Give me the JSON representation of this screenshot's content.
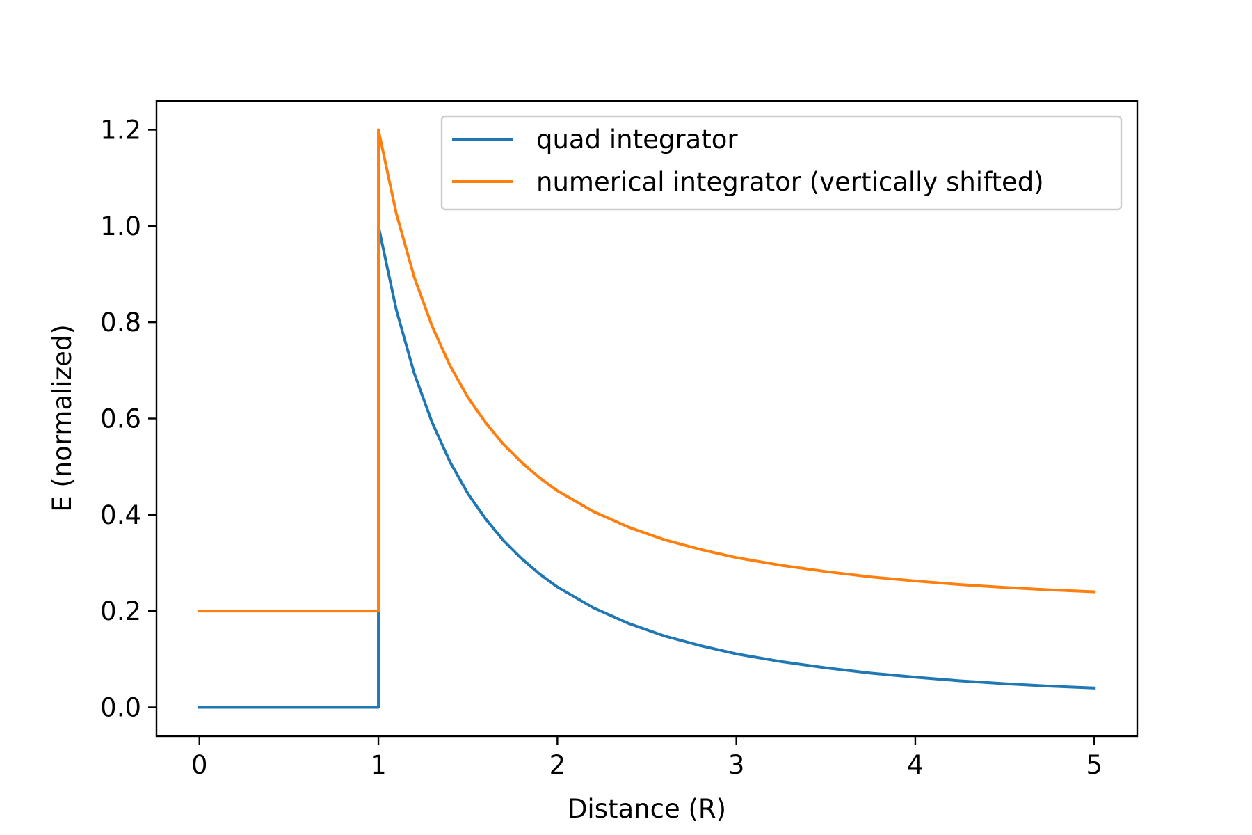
{
  "chart_data": {
    "type": "line",
    "title": "",
    "xlabel": "Distance (R)",
    "ylabel": "E (normalized)",
    "xlim": [
      -0.24,
      5.24
    ],
    "ylim": [
      -0.06,
      1.26
    ],
    "x_ticks": [
      0,
      1,
      2,
      3,
      4,
      5
    ],
    "y_ticks": [
      0.0,
      0.2,
      0.4,
      0.6,
      0.8,
      1.0,
      1.2
    ],
    "x_tick_labels": [
      "0",
      "1",
      "2",
      "3",
      "4",
      "5"
    ],
    "y_tick_labels": [
      "0.0",
      "0.2",
      "0.4",
      "0.6",
      "0.8",
      "1.0",
      "1.2"
    ],
    "grid": false,
    "legend_position": "top-right",
    "series": [
      {
        "name": "quad integrator",
        "color": "#1f77b4",
        "x": [
          0,
          0.5,
          1.0,
          1.0,
          1.1,
          1.2,
          1.3,
          1.4,
          1.5,
          1.6,
          1.7,
          1.8,
          1.9,
          2.0,
          2.2,
          2.4,
          2.6,
          2.8,
          3.0,
          3.25,
          3.5,
          3.75,
          4.0,
          4.25,
          4.5,
          4.75,
          5.0
        ],
        "y": [
          0,
          0,
          0,
          1.0,
          0.826,
          0.694,
          0.592,
          0.51,
          0.444,
          0.391,
          0.346,
          0.309,
          0.277,
          0.25,
          0.207,
          0.174,
          0.148,
          0.128,
          0.111,
          0.095,
          0.082,
          0.071,
          0.0625,
          0.055,
          0.049,
          0.044,
          0.04
        ]
      },
      {
        "name": "numerical integrator (vertically shifted)",
        "color": "#ff7f0e",
        "x": [
          0,
          0.5,
          1.0,
          1.0,
          1.1,
          1.2,
          1.3,
          1.4,
          1.5,
          1.6,
          1.7,
          1.8,
          1.9,
          2.0,
          2.2,
          2.4,
          2.6,
          2.8,
          3.0,
          3.25,
          3.5,
          3.75,
          4.0,
          4.25,
          4.5,
          4.75,
          5.0
        ],
        "y": [
          0.2,
          0.2,
          0.2,
          1.2,
          1.026,
          0.894,
          0.792,
          0.71,
          0.644,
          0.591,
          0.546,
          0.509,
          0.477,
          0.45,
          0.407,
          0.374,
          0.348,
          0.328,
          0.311,
          0.295,
          0.282,
          0.271,
          0.2625,
          0.255,
          0.249,
          0.244,
          0.24
        ]
      }
    ]
  }
}
